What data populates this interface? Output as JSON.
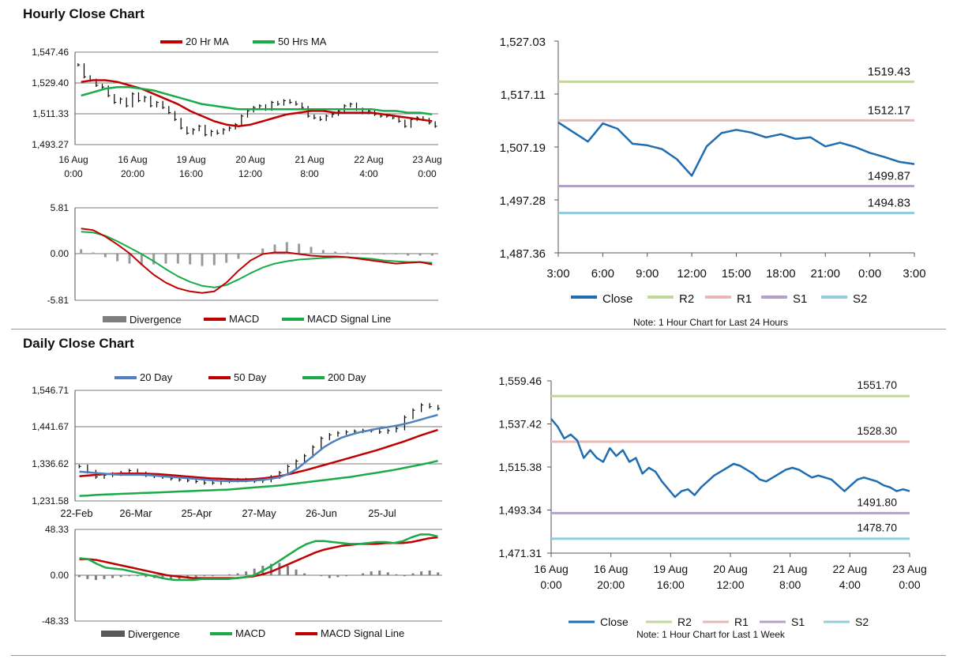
{
  "sections": {
    "hourly_title": "Hourly Close Chart",
    "daily_title": "Daily Close Chart"
  },
  "colors": {
    "red": "#c00000",
    "green": "#1aab48",
    "blue": "#4f81bd",
    "navy": "#1f6cb0",
    "gray": "#7f7f7f",
    "r2": "#c3d69b",
    "r1": "#e6b9b8",
    "s1": "#b3a2c7",
    "s2": "#93cddd"
  },
  "chart_data": [
    {
      "id": "hourly_price",
      "type": "line",
      "title": "",
      "legend": [
        {
          "name": "20 Hr MA",
          "color": "#c00000"
        },
        {
          "name": "50 Hrs MA",
          "color": "#1aab48"
        }
      ],
      "x_tick_labels": [
        [
          "16 Aug",
          "0:00"
        ],
        [
          "16 Aug",
          "20:00"
        ],
        [
          "19 Aug",
          "16:00"
        ],
        [
          "20 Aug",
          "12:00"
        ],
        [
          "21 Aug",
          "8:00"
        ],
        [
          "22 Aug",
          "4:00"
        ],
        [
          "23 Aug",
          "0:00"
        ]
      ],
      "y_tick_labels": [
        "1,547.46",
        "1,529.40",
        "1,511.33",
        "1,493.27"
      ],
      "ylim": [
        1493.27,
        1547.46
      ],
      "series": [
        {
          "name": "Close",
          "style": "hloc",
          "color": "#000000",
          "values": [
            1540,
            1533,
            1531,
            1528,
            1527,
            1522,
            1518,
            1520,
            1516,
            1523,
            1519,
            1521,
            1516,
            1518,
            1515,
            1512,
            1508,
            1503,
            1500,
            1502,
            1504,
            1499,
            1501,
            1500,
            1502,
            1503,
            1505,
            1510,
            1513,
            1515,
            1516,
            1514,
            1518,
            1517,
            1519,
            1518,
            1517,
            1515,
            1510,
            1509,
            1508,
            1510,
            1511,
            1513,
            1516,
            1517,
            1514,
            1512,
            1513,
            1511,
            1510,
            1510,
            1509,
            1507,
            1504,
            1508,
            1509,
            1508,
            1506,
            1504
          ]
        },
        {
          "name": "20 Hr MA",
          "color": "#c00000",
          "values": [
            1530,
            1531,
            1531,
            1530,
            1528,
            1526,
            1523,
            1520,
            1517,
            1513,
            1510,
            1507,
            1505,
            1504,
            1505,
            1507,
            1509,
            1511,
            1512,
            1513,
            1513,
            1512,
            1512,
            1512,
            1512,
            1511,
            1510,
            1509,
            1508,
            1507
          ]
        },
        {
          "name": "50 Hrs MA",
          "color": "#1aab48",
          "values": [
            1522,
            1524,
            1526,
            1527,
            1527,
            1526,
            1525,
            1523,
            1521,
            1519,
            1517,
            1516,
            1515,
            1514,
            1514,
            1514,
            1514,
            1514,
            1514,
            1514,
            1514,
            1514,
            1514,
            1514,
            1514,
            1513,
            1513,
            1512,
            1512,
            1511
          ]
        }
      ]
    },
    {
      "id": "hourly_macd",
      "type": "line",
      "legend": [
        {
          "name": "Divergence",
          "color": "#7f7f7f"
        },
        {
          "name": "MACD",
          "color": "#c00000"
        },
        {
          "name": "MACD Signal Line",
          "color": "#1aab48"
        }
      ],
      "y_tick_labels": [
        "5.81",
        "0.00",
        "-5.81"
      ],
      "ylim": [
        -5.81,
        5.81
      ],
      "series": [
        {
          "name": "Divergence",
          "style": "bar",
          "color": "#7f7f7f",
          "values": [
            0.6,
            0.2,
            -0.4,
            -0.9,
            -1.2,
            -1.4,
            -1.3,
            -1.2,
            -1.2,
            -1.3,
            -1.5,
            -1.4,
            -1.1,
            -0.6,
            0,
            0.7,
            1.2,
            1.5,
            1.3,
            0.9,
            0.5,
            0.3,
            0.2,
            0.1,
            0.1,
            0,
            0,
            -0.2,
            -0.2,
            -0.2
          ]
        },
        {
          "name": "MACD",
          "color": "#c00000",
          "values": [
            3.2,
            3.0,
            2.2,
            1.2,
            0.1,
            -1.3,
            -2.6,
            -3.6,
            -4.3,
            -4.7,
            -4.9,
            -4.7,
            -3.6,
            -2.1,
            -0.8,
            0,
            0.2,
            0.2,
            0,
            -0.2,
            -0.3,
            -0.3,
            -0.4,
            -0.6,
            -0.8,
            -1.0,
            -1.2,
            -1.1,
            -1.0,
            -1.3
          ]
        },
        {
          "name": "MACD Signal Line",
          "color": "#1aab48",
          "values": [
            2.8,
            2.7,
            2.3,
            1.6,
            0.8,
            0,
            -0.9,
            -1.9,
            -2.8,
            -3.5,
            -4.0,
            -4.2,
            -3.9,
            -3.2,
            -2.4,
            -1.7,
            -1.2,
            -0.9,
            -0.7,
            -0.6,
            -0.5,
            -0.4,
            -0.4,
            -0.5,
            -0.6,
            -0.8,
            -0.9,
            -1.0,
            -1.0,
            -1.1
          ]
        }
      ]
    },
    {
      "id": "hourly_24h",
      "type": "line",
      "note": "Note: 1 Hour Chart for Last 24 Hours",
      "legend": [
        {
          "name": "Close",
          "color": "#1f6cb0"
        },
        {
          "name": "R2",
          "color": "#c3d69b"
        },
        {
          "name": "R1",
          "color": "#e6b9b8"
        },
        {
          "name": "S1",
          "color": "#b3a2c7"
        },
        {
          "name": "S2",
          "color": "#93cddd"
        }
      ],
      "x_tick_labels": [
        "3:00",
        "6:00",
        "9:00",
        "12:00",
        "15:00",
        "18:00",
        "21:00",
        "0:00",
        "3:00"
      ],
      "y_tick_labels": [
        "1,527.03",
        "1,517.11",
        "1,507.19",
        "1,497.28",
        "1,487.36"
      ],
      "ylim": [
        1487.36,
        1527.03
      ],
      "levels": [
        {
          "name": "R2",
          "value": 1519.43,
          "label": "1519.43",
          "color": "#c3d69b"
        },
        {
          "name": "R1",
          "value": 1512.17,
          "label": "1512.17",
          "color": "#e6b9b8"
        },
        {
          "name": "S1",
          "value": 1499.87,
          "label": "1499.87",
          "color": "#b3a2c7"
        },
        {
          "name": "S2",
          "value": 1494.83,
          "label": "1494.83",
          "color": "#93cddd"
        }
      ],
      "series": [
        {
          "name": "Close",
          "color": "#1f6cb0",
          "values": [
            1511.8,
            1510.0,
            1508.2,
            1511.6,
            1510.6,
            1507.8,
            1507.5,
            1506.8,
            1504.9,
            1501.8,
            1507.3,
            1509.8,
            1510.4,
            1509.9,
            1509.0,
            1509.6,
            1508.7,
            1509.0,
            1507.3,
            1508.0,
            1507.2,
            1506.1,
            1505.3,
            1504.4,
            1504.0
          ]
        }
      ]
    },
    {
      "id": "daily_price",
      "type": "line",
      "legend": [
        {
          "name": "20 Day",
          "color": "#4f81bd"
        },
        {
          "name": "50 Day",
          "color": "#c00000"
        },
        {
          "name": "200 Day",
          "color": "#1aab48"
        }
      ],
      "x_tick_labels": [
        "22-Feb",
        "26-Mar",
        "25-Apr",
        "27-May",
        "26-Jun",
        "25-Jul"
      ],
      "y_tick_labels": [
        "1,546.71",
        "1,441.67",
        "1,336.62",
        "1,231.58"
      ],
      "ylim": [
        1231.58,
        1546.71
      ],
      "series": [
        {
          "name": "Close",
          "style": "hloc",
          "color": "#000000",
          "values": [
            1330,
            1315,
            1300,
            1305,
            1308,
            1312,
            1318,
            1310,
            1305,
            1302,
            1300,
            1295,
            1292,
            1290,
            1287,
            1283,
            1283,
            1288,
            1290,
            1292,
            1290,
            1288,
            1290,
            1300,
            1312,
            1330,
            1345,
            1360,
            1385,
            1410,
            1420,
            1425,
            1428,
            1430,
            1432,
            1432,
            1428,
            1432,
            1438,
            1470,
            1490,
            1505,
            1500,
            1495
          ]
        },
        {
          "name": "20 Day",
          "color": "#4f81bd",
          "values": [
            1315,
            1313,
            1311,
            1309,
            1307,
            1306,
            1306,
            1306,
            1305,
            1303,
            1301,
            1299,
            1297,
            1295,
            1293,
            1291,
            1289,
            1288,
            1288,
            1288,
            1290,
            1292,
            1295,
            1300,
            1310,
            1325,
            1345,
            1365,
            1385,
            1400,
            1412,
            1420,
            1427,
            1432,
            1437,
            1441,
            1445,
            1450,
            1456,
            1463,
            1470,
            1477
          ]
        },
        {
          "name": "50 Day",
          "color": "#c00000",
          "values": [
            1302,
            1304,
            1306,
            1308,
            1309,
            1310,
            1310,
            1310,
            1309,
            1308,
            1306,
            1304,
            1302,
            1300,
            1298,
            1296,
            1295,
            1294,
            1293,
            1293,
            1294,
            1296,
            1299,
            1303,
            1308,
            1314,
            1320,
            1327,
            1334,
            1341,
            1348,
            1355,
            1362,
            1369,
            1376,
            1384,
            1392,
            1400,
            1409,
            1418,
            1426,
            1434
          ]
        },
        {
          "name": "200 Day",
          "color": "#1aab48",
          "values": [
            1246,
            1247,
            1249,
            1250,
            1251,
            1252,
            1253,
            1254,
            1255,
            1256,
            1257,
            1258,
            1259,
            1260,
            1261,
            1262,
            1263,
            1264,
            1266,
            1268,
            1270,
            1272,
            1274,
            1276,
            1279,
            1282,
            1285,
            1288,
            1291,
            1294,
            1297,
            1300,
            1304,
            1308,
            1312,
            1316,
            1320,
            1325,
            1330,
            1335,
            1340,
            1346
          ]
        }
      ]
    },
    {
      "id": "daily_macd",
      "type": "line",
      "legend": [
        {
          "name": "Divergence",
          "color": "#595959"
        },
        {
          "name": "MACD",
          "color": "#1aab48"
        },
        {
          "name": "MACD Signal Line",
          "color": "#c00000"
        }
      ],
      "y_tick_labels": [
        "48.33",
        "0.00",
        "-48.33"
      ],
      "ylim": [
        -48.33,
        48.33
      ],
      "series": [
        {
          "name": "Divergence",
          "style": "bar",
          "color": "#595959",
          "values": [
            -2,
            -4,
            -5,
            -4,
            -3,
            -2,
            -1,
            -1,
            -2,
            -3,
            -4,
            -5,
            -4,
            -3,
            -2,
            -1,
            -1,
            0,
            1,
            2,
            4,
            7,
            10,
            12,
            13,
            10,
            6,
            2,
            0,
            -1,
            -3,
            -2,
            -1,
            0,
            2,
            4,
            5,
            3,
            1,
            -1,
            2,
            4,
            5,
            3
          ]
        },
        {
          "name": "MACD",
          "color": "#1aab48",
          "values": [
            18,
            17,
            12,
            8,
            7,
            6,
            4,
            2,
            0,
            -2,
            -4,
            -5,
            -5,
            -5,
            -4,
            -4,
            -4,
            -4,
            -3,
            -2,
            0,
            5,
            10,
            16,
            22,
            28,
            33,
            36,
            36,
            35,
            34,
            33,
            33,
            34,
            35,
            35,
            34,
            36,
            40,
            43,
            43,
            41
          ]
        },
        {
          "name": "MACD Signal Line",
          "color": "#c00000",
          "values": [
            17,
            17,
            16,
            14,
            12,
            10,
            8,
            6,
            4,
            2,
            0,
            -1,
            -2,
            -3,
            -3,
            -3,
            -3,
            -3,
            -3,
            -2,
            -1,
            1,
            4,
            8,
            12,
            16,
            20,
            24,
            27,
            29,
            31,
            32,
            33,
            33,
            33,
            34,
            34,
            34,
            35,
            37,
            39,
            40
          ]
        }
      ]
    },
    {
      "id": "daily_week",
      "type": "line",
      "note": "Note: 1 Hour Chart for Last 1 Week",
      "legend": [
        {
          "name": "Close",
          "color": "#1f6cb0"
        },
        {
          "name": "R2",
          "color": "#c3d69b"
        },
        {
          "name": "R1",
          "color": "#e6b9b8"
        },
        {
          "name": "S1",
          "color": "#b3a2c7"
        },
        {
          "name": "S2",
          "color": "#93cddd"
        }
      ],
      "x_tick_labels": [
        [
          "16 Aug",
          "0:00"
        ],
        [
          "16 Aug",
          "20:00"
        ],
        [
          "19 Aug",
          "16:00"
        ],
        [
          "20 Aug",
          "12:00"
        ],
        [
          "21 Aug",
          "8:00"
        ],
        [
          "22 Aug",
          "4:00"
        ],
        [
          "23 Aug",
          "0:00"
        ]
      ],
      "y_tick_labels": [
        "1,559.46",
        "1,537.42",
        "1,515.38",
        "1,493.34",
        "1,471.31"
      ],
      "ylim": [
        1471.31,
        1559.46
      ],
      "levels": [
        {
          "name": "R2",
          "value": 1551.7,
          "label": "1551.70",
          "color": "#c3d69b"
        },
        {
          "name": "R1",
          "value": 1528.3,
          "label": "1528.30",
          "color": "#e6b9b8"
        },
        {
          "name": "S1",
          "value": 1491.8,
          "label": "1491.80",
          "color": "#b3a2c7"
        },
        {
          "name": "S2",
          "value": 1478.7,
          "label": "1478.70",
          "color": "#93cddd"
        }
      ],
      "series": [
        {
          "name": "Close",
          "color": "#1f6cb0",
          "values": [
            1540,
            1536,
            1530,
            1532,
            1529,
            1520,
            1524,
            1520,
            1518,
            1525,
            1521,
            1524,
            1518,
            1520,
            1512,
            1515,
            1513,
            1508,
            1504,
            1500,
            1503,
            1504,
            1501,
            1505,
            1508,
            1511,
            1513,
            1515,
            1517,
            1516,
            1514,
            1512,
            1509,
            1508,
            1510,
            1512,
            1514,
            1515,
            1514,
            1512,
            1510,
            1511,
            1510,
            1509,
            1506,
            1503,
            1506,
            1509,
            1510,
            1509,
            1508,
            1506,
            1505,
            1503,
            1504,
            1503
          ]
        }
      ]
    }
  ]
}
